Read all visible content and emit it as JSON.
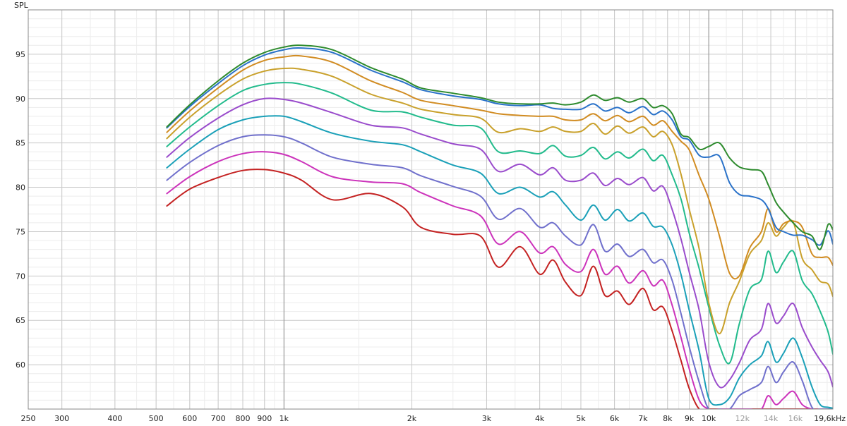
{
  "chart_data": {
    "type": "line",
    "ylabel": "SPL",
    "xlabel": "",
    "x_scale": "log",
    "xlim": [
      250,
      19600
    ],
    "ylim": [
      55,
      100
    ],
    "grid": true,
    "legend": "none",
    "yticks": [
      {
        "value": 95,
        "label": "95"
      },
      {
        "value": 90,
        "label": "90"
      },
      {
        "value": 85,
        "label": "85"
      },
      {
        "value": 80,
        "label": "80"
      },
      {
        "value": 75,
        "label": "75"
      },
      {
        "value": 70,
        "label": "70"
      },
      {
        "value": 65,
        "label": "65"
      },
      {
        "value": 60,
        "label": "60"
      }
    ],
    "xticks": [
      {
        "value": 250,
        "label": "250",
        "dim": false
      },
      {
        "value": 300,
        "label": "300",
        "dim": false
      },
      {
        "value": 400,
        "label": "400",
        "dim": false
      },
      {
        "value": 500,
        "label": "500",
        "dim": false
      },
      {
        "value": 600,
        "label": "600",
        "dim": false
      },
      {
        "value": 700,
        "label": "700",
        "dim": false
      },
      {
        "value": 800,
        "label": "800",
        "dim": false
      },
      {
        "value": 900,
        "label": "900",
        "dim": false
      },
      {
        "value": 1000,
        "label": "1k",
        "dim": false
      },
      {
        "value": 2000,
        "label": "2k",
        "dim": false
      },
      {
        "value": 3000,
        "label": "3k",
        "dim": false
      },
      {
        "value": 4000,
        "label": "4k",
        "dim": false
      },
      {
        "value": 5000,
        "label": "5k",
        "dim": false
      },
      {
        "value": 6000,
        "label": "6k",
        "dim": false
      },
      {
        "value": 7000,
        "label": "7k",
        "dim": false
      },
      {
        "value": 8000,
        "label": "8k",
        "dim": false
      },
      {
        "value": 9000,
        "label": "9k",
        "dim": false
      },
      {
        "value": 10000,
        "label": "10k",
        "dim": false
      },
      {
        "value": 12000,
        "label": "12k",
        "dim": true
      },
      {
        "value": 14000,
        "label": "14k",
        "dim": true
      },
      {
        "value": 16000,
        "label": "16k",
        "dim": true
      },
      {
        "value": 19600,
        "label": "19,6kHz",
        "dim": false
      }
    ],
    "series": [
      {
        "color": "#2e8b2e",
        "x": [
          530,
          600,
          700,
          800,
          900,
          1000,
          1100,
          1300,
          1600,
          1900,
          2100,
          2500,
          2900,
          3200,
          3600,
          4000,
          4300,
          4600,
          5000,
          5350,
          5700,
          6100,
          6500,
          7000,
          7400,
          7800,
          8200,
          8600,
          9000,
          9500,
          10000,
          10600,
          11200,
          11800,
          12500,
          13300,
          13800,
          14400,
          15000,
          15800,
          16600,
          17500,
          18300,
          19100,
          19600
        ],
        "y": [
          86.8,
          89.3,
          92.0,
          94.0,
          95.2,
          95.8,
          96.0,
          95.5,
          93.5,
          92.2,
          91.2,
          90.6,
          90.1,
          89.6,
          89.4,
          89.4,
          89.5,
          89.3,
          89.6,
          90.4,
          89.8,
          90.1,
          89.6,
          90.0,
          89.0,
          89.2,
          88.3,
          86.0,
          85.6,
          84.3,
          84.6,
          85.0,
          83.3,
          82.3,
          82.0,
          81.8,
          80.3,
          78.3,
          77.2,
          76.0,
          75.0,
          74.5,
          73.0,
          75.8,
          75.2
        ]
      },
      {
        "color": "#2a72c9",
        "x": [
          530,
          600,
          700,
          800,
          900,
          1000,
          1100,
          1300,
          1600,
          1900,
          2100,
          2500,
          2900,
          3200,
          3600,
          4000,
          4300,
          4600,
          5000,
          5350,
          5700,
          6100,
          6500,
          7000,
          7400,
          7800,
          8200,
          8600,
          9000,
          9500,
          10000,
          10600,
          11200,
          11800,
          12500,
          13300,
          13800,
          14400,
          15000,
          15800,
          16600,
          17500,
          18300,
          19100,
          19600
        ],
        "y": [
          86.7,
          89.1,
          91.7,
          93.7,
          94.9,
          95.5,
          95.7,
          95.2,
          93.2,
          91.9,
          91.0,
          90.3,
          89.9,
          89.4,
          89.2,
          89.3,
          88.9,
          88.8,
          88.8,
          89.4,
          88.6,
          89.0,
          88.4,
          89.1,
          88.2,
          88.6,
          87.6,
          85.7,
          85.3,
          83.6,
          83.4,
          83.5,
          80.5,
          79.2,
          79.0,
          78.6,
          77.6,
          75.5,
          75.0,
          74.6,
          74.6,
          74.1,
          73.5,
          75.1,
          73.6
        ]
      },
      {
        "color": "#d18c22",
        "x": [
          530,
          600,
          700,
          800,
          900,
          1000,
          1100,
          1300,
          1600,
          1900,
          2100,
          2500,
          2900,
          3200,
          3600,
          4000,
          4300,
          4600,
          5000,
          5350,
          5700,
          6100,
          6500,
          7000,
          7400,
          7800,
          8200,
          8600,
          9000,
          9500,
          10000,
          10600,
          11200,
          11800,
          12500,
          13300,
          13800,
          14400,
          15000,
          15800,
          16600,
          17500,
          18300,
          19100,
          19600
        ],
        "y": [
          86.2,
          88.6,
          91.2,
          93.2,
          94.3,
          94.7,
          94.8,
          94.1,
          92.0,
          90.7,
          89.8,
          89.2,
          88.7,
          88.3,
          88.1,
          88.0,
          88.0,
          87.6,
          87.6,
          88.3,
          87.5,
          88.1,
          87.4,
          88.0,
          87.0,
          87.5,
          86.3,
          85.2,
          84.2,
          81.3,
          78.7,
          74.5,
          70.3,
          70.0,
          73.2,
          75.0,
          77.6,
          75.0,
          75.9,
          76.2,
          75.5,
          72.5,
          72.1,
          72.1,
          71.2
        ]
      },
      {
        "color": "#c9a12c",
        "x": [
          530,
          600,
          700,
          800,
          900,
          1000,
          1100,
          1300,
          1600,
          1900,
          2100,
          2500,
          2900,
          3200,
          3600,
          4000,
          4300,
          4600,
          5000,
          5350,
          5700,
          6100,
          6500,
          7000,
          7400,
          7800,
          8200,
          8600,
          9000,
          9500,
          10000,
          10600,
          11200,
          11800,
          12500,
          13300,
          13800,
          14400,
          15000,
          15800,
          16600,
          17500,
          18300,
          19100,
          19600
        ],
        "y": [
          85.5,
          87.9,
          90.4,
          92.2,
          93.1,
          93.4,
          93.3,
          92.5,
          90.5,
          89.5,
          88.8,
          88.2,
          87.8,
          86.2,
          86.6,
          86.3,
          86.8,
          86.3,
          86.3,
          87.2,
          86.0,
          86.9,
          86.1,
          86.8,
          85.7,
          86.3,
          84.8,
          81.5,
          77.5,
          73.0,
          67.0,
          63.5,
          67.0,
          69.4,
          72.5,
          74.0,
          76.0,
          74.5,
          75.5,
          76.1,
          72.0,
          70.7,
          69.4,
          69.1,
          67.7
        ]
      },
      {
        "color": "#22bb8c",
        "x": [
          530,
          600,
          700,
          800,
          900,
          1000,
          1100,
          1300,
          1600,
          1900,
          2100,
          2500,
          2900,
          3200,
          3600,
          4000,
          4300,
          4600,
          5000,
          5350,
          5700,
          6100,
          6500,
          7000,
          7400,
          7800,
          8200,
          8600,
          9000,
          9500,
          10000,
          10600,
          11200,
          11800,
          12500,
          13300,
          13800,
          14400,
          15000,
          15800,
          16600,
          17500,
          18300,
          19100,
          19600
        ],
        "y": [
          84.6,
          86.8,
          89.2,
          90.9,
          91.6,
          91.8,
          91.6,
          90.6,
          88.7,
          88.5,
          87.9,
          87.0,
          86.7,
          84.0,
          84.1,
          83.8,
          84.7,
          83.5,
          83.6,
          84.5,
          83.2,
          84.0,
          83.3,
          84.3,
          83.0,
          83.6,
          81.4,
          78.7,
          74.8,
          70.8,
          66.5,
          62.2,
          60.2,
          64.6,
          68.5,
          69.6,
          72.8,
          70.4,
          71.6,
          72.8,
          69.5,
          68.0,
          66.0,
          63.7,
          61.2
        ]
      },
      {
        "color": "#9a4ccc",
        "x": [
          530,
          600,
          700,
          800,
          900,
          1000,
          1100,
          1300,
          1600,
          1900,
          2100,
          2500,
          2900,
          3200,
          3600,
          4000,
          4300,
          4600,
          5000,
          5350,
          5700,
          6100,
          6500,
          7000,
          7400,
          7800,
          8200,
          8600,
          9000,
          9500,
          10000,
          10600,
          11200,
          11800,
          12500,
          13300,
          13800,
          14400,
          15000,
          15800,
          16600,
          17500,
          18300,
          19100,
          19600
        ],
        "y": [
          83.4,
          85.6,
          87.8,
          89.3,
          90.0,
          89.9,
          89.5,
          88.4,
          87.0,
          86.7,
          86.0,
          84.9,
          84.3,
          81.8,
          82.6,
          81.4,
          82.2,
          80.8,
          80.8,
          81.6,
          80.2,
          81.0,
          80.3,
          81.1,
          79.6,
          80.1,
          77.5,
          74.2,
          70.4,
          66.1,
          60.3,
          57.5,
          58.3,
          60.2,
          62.8,
          64.0,
          66.9,
          64.7,
          65.5,
          66.9,
          64.2,
          62.0,
          60.5,
          59.2,
          57.5
        ]
      },
      {
        "color": "#1aa0b8",
        "x": [
          530,
          600,
          700,
          800,
          900,
          1000,
          1100,
          1300,
          1600,
          1900,
          2100,
          2500,
          2900,
          3200,
          3600,
          4000,
          4300,
          4600,
          5000,
          5350,
          5700,
          6100,
          6500,
          7000,
          7400,
          7800,
          8200,
          8600,
          9000,
          9500,
          10000,
          10600,
          11200,
          11800,
          12500,
          13300,
          13800,
          14400,
          15000,
          15800,
          16600,
          17500,
          18300,
          19100,
          19600
        ],
        "y": [
          82.2,
          84.3,
          86.5,
          87.6,
          88.0,
          88.0,
          87.4,
          86.1,
          85.2,
          84.8,
          84.0,
          82.5,
          81.6,
          79.3,
          80.0,
          78.9,
          79.5,
          78.0,
          76.3,
          78.0,
          76.3,
          77.5,
          76.2,
          77.1,
          75.6,
          75.5,
          73.5,
          70.2,
          66.1,
          61.5,
          56.2,
          55.5,
          56.3,
          58.5,
          60.0,
          61.0,
          62.6,
          60.3,
          61.3,
          63.0,
          60.8,
          57.5,
          55.5,
          55.2,
          55.1
        ]
      },
      {
        "color": "#7070cc",
        "x": [
          530,
          600,
          700,
          800,
          900,
          1000,
          1100,
          1300,
          1600,
          1900,
          2100,
          2500,
          2900,
          3200,
          3600,
          4000,
          4300,
          4600,
          5000,
          5350,
          5700,
          6100,
          6500,
          7000,
          7400,
          7800,
          8200,
          8600,
          9000,
          9500,
          10000,
          10600,
          11200,
          11800,
          12500,
          13300,
          13800,
          14400,
          15000,
          15800,
          16600,
          17500,
          18300,
          19100,
          19600
        ],
        "y": [
          80.8,
          82.8,
          84.7,
          85.7,
          85.9,
          85.7,
          85.0,
          83.4,
          82.6,
          82.2,
          81.3,
          80.1,
          79.0,
          76.4,
          77.6,
          75.5,
          76.0,
          74.5,
          73.5,
          75.8,
          72.8,
          73.6,
          72.2,
          73.0,
          71.5,
          71.8,
          69.5,
          65.8,
          62.0,
          58.0,
          55.0,
          55.0,
          55.0,
          56.5,
          57.2,
          58.0,
          59.8,
          58.0,
          59.2,
          60.3,
          58.2,
          55.2,
          55.0,
          55.0,
          55.0
        ]
      },
      {
        "color": "#cc33bb",
        "x": [
          530,
          600,
          700,
          800,
          900,
          1000,
          1100,
          1300,
          1600,
          1900,
          2100,
          2500,
          2900,
          3200,
          3600,
          4000,
          4300,
          4600,
          5000,
          5350,
          5700,
          6100,
          6500,
          7000,
          7400,
          7800,
          8200,
          8600,
          9000,
          9500,
          10000,
          10600,
          11200,
          11800,
          12500,
          13300,
          13800,
          14400,
          15000,
          15800,
          16600,
          17500,
          18300,
          19100,
          19600
        ],
        "y": [
          79.3,
          81.2,
          82.9,
          83.8,
          84.0,
          83.7,
          82.9,
          81.2,
          80.6,
          80.4,
          79.4,
          77.9,
          76.8,
          73.6,
          75.0,
          72.6,
          73.3,
          71.3,
          70.5,
          73.0,
          70.2,
          71.1,
          69.2,
          70.6,
          68.9,
          69.5,
          66.7,
          63.1,
          59.5,
          56.0,
          55.0,
          55.0,
          55.0,
          55.0,
          55.0,
          55.0,
          56.5,
          55.5,
          56.2,
          57.0,
          55.5,
          55.0,
          55.0,
          55.0,
          55.0
        ]
      },
      {
        "color": "#c42222",
        "x": [
          530,
          600,
          700,
          800,
          900,
          1000,
          1100,
          1300,
          1600,
          1900,
          2100,
          2500,
          2900,
          3200,
          3600,
          4000,
          4300,
          4600,
          5000,
          5350,
          5700,
          6100,
          6500,
          7000,
          7400,
          7800,
          8200,
          8600,
          9000,
          9500,
          10000,
          10600,
          11200,
          11800,
          12500,
          13300,
          13800,
          14400,
          15000,
          15800,
          16600,
          17500,
          18300,
          19100,
          19600
        ],
        "y": [
          77.9,
          79.8,
          81.1,
          81.9,
          82.0,
          81.6,
          80.8,
          78.6,
          79.3,
          77.8,
          75.5,
          74.7,
          74.5,
          71.0,
          73.3,
          70.2,
          71.8,
          69.3,
          67.8,
          71.1,
          67.8,
          68.3,
          66.8,
          68.6,
          66.2,
          66.5,
          63.8,
          60.5,
          57.3,
          55.0,
          55.0,
          55.0,
          55.0,
          55.0,
          55.0,
          55.0,
          55.0,
          55.0,
          55.0,
          55.0,
          55.0,
          55.0,
          55.0,
          55.0,
          55.0
        ]
      }
    ]
  }
}
